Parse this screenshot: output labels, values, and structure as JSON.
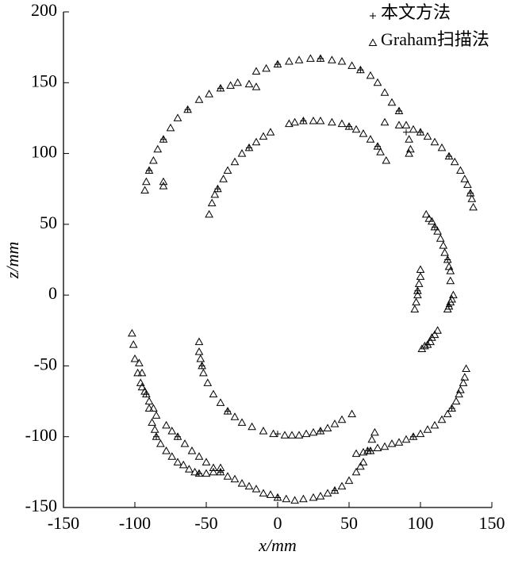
{
  "chart_data": {
    "type": "scatter",
    "xlabel": "x/mm",
    "ylabel": "z/mm",
    "xlim": [
      -150,
      150
    ],
    "ylim": [
      -150,
      200
    ],
    "xticks": [
      -150,
      -100,
      -50,
      0,
      50,
      100,
      150
    ],
    "yticks": [
      -150,
      -100,
      -50,
      0,
      50,
      100,
      150,
      200
    ],
    "grid": false,
    "legend": "upper right",
    "series": [
      {
        "name": "本文方法",
        "marker": "plus",
        "color": "#000000",
        "x": [
          -90,
          -80,
          -63,
          -40,
          0,
          30,
          58,
          85,
          90,
          100,
          120,
          135,
          -42,
          -20,
          18,
          50,
          70,
          110,
          119,
          98,
          120,
          105,
          -53,
          -35,
          0,
          30,
          -92,
          -70,
          -40,
          0,
          40,
          63,
          -85,
          -55,
          122,
          95,
          65
        ],
        "values": [
          88,
          110,
          131,
          146,
          163,
          167,
          159,
          130,
          115,
          115,
          98,
          72,
          75,
          104,
          123,
          119,
          105,
          48,
          25,
          3,
          -8,
          -35,
          -50,
          -82,
          -98,
          -96,
          -70,
          -100,
          -125,
          -143,
          -138,
          -110,
          -100,
          -126,
          -80,
          -100,
          -110
        ]
      },
      {
        "name": "Graham扫描法",
        "marker": "triangle",
        "color": "#000000",
        "x": [
          -93,
          -92,
          -90,
          -87,
          -84,
          -80,
          -75,
          -70,
          -63,
          -55,
          -48,
          -40,
          -33,
          -28,
          -20,
          -15,
          -80,
          -80,
          -15,
          -8,
          0,
          8,
          15,
          23,
          30,
          38,
          45,
          52,
          58,
          65,
          70,
          75,
          80,
          85,
          90,
          75,
          85,
          95,
          100,
          105,
          110,
          115,
          120,
          124,
          128,
          131,
          133,
          135,
          136,
          137,
          92,
          93,
          92,
          -48,
          -46,
          -44,
          -42,
          -38,
          -35,
          -30,
          -25,
          -20,
          -15,
          -10,
          -5,
          8,
          12,
          18,
          25,
          30,
          38,
          45,
          50,
          55,
          60,
          65,
          70,
          72,
          76,
          104,
          106,
          108,
          110,
          112,
          114,
          116,
          117,
          119,
          120,
          121,
          121,
          100,
          100,
          99,
          98,
          98,
          97,
          96,
          123,
          122,
          121,
          120,
          119,
          101,
          103,
          105,
          107,
          108,
          110,
          112,
          -55,
          -55,
          -54,
          -53,
          -52,
          -49,
          -45,
          -40,
          -35,
          -30,
          -25,
          -18,
          -10,
          -3,
          5,
          10,
          15,
          20,
          25,
          30,
          35,
          40,
          45,
          52,
          -102,
          -101,
          -100,
          -98,
          -96,
          -95,
          -92,
          -90,
          -87,
          -85,
          -78,
          -74,
          -70,
          -65,
          -60,
          -55,
          -50,
          -45,
          -40,
          -35,
          -30,
          -25,
          -20,
          -15,
          -10,
          -5,
          0,
          6,
          12,
          18,
          25,
          30,
          35,
          40,
          45,
          50,
          55,
          58,
          60,
          63,
          66,
          68,
          -97,
          -95,
          -93,
          -90,
          -88,
          -86,
          -85,
          -82,
          -78,
          -74,
          -70,
          -66,
          -62,
          -58,
          -55,
          -50,
          -45,
          -40,
          132,
          131,
          130,
          128,
          127,
          125,
          122,
          119,
          115,
          110,
          105,
          100,
          95,
          90,
          85,
          80,
          75,
          70,
          65,
          60,
          55
        ],
        "values": [
          74,
          80,
          88,
          95,
          103,
          110,
          118,
          125,
          131,
          138,
          142,
          146,
          148,
          150,
          149,
          147,
          77,
          80,
          158,
          160,
          163,
          165,
          166,
          167,
          167,
          166,
          165,
          162,
          159,
          155,
          150,
          143,
          136,
          130,
          120,
          122,
          120,
          117,
          115,
          112,
          108,
          104,
          98,
          94,
          88,
          82,
          78,
          72,
          68,
          62,
          110,
          103,
          100,
          57,
          65,
          71,
          75,
          82,
          88,
          94,
          100,
          104,
          108,
          112,
          115,
          121,
          122,
          123,
          123,
          123,
          122,
          121,
          119,
          117,
          114,
          110,
          105,
          101,
          95,
          57,
          54,
          52,
          48,
          45,
          40,
          35,
          30,
          25,
          20,
          17,
          10,
          18,
          13,
          8,
          3,
          0,
          -5,
          -10,
          0,
          -3,
          -5,
          -8,
          -10,
          -38,
          -36,
          -35,
          -33,
          -30,
          -28,
          -25,
          -33,
          -40,
          -45,
          -50,
          -55,
          -62,
          -70,
          -76,
          -82,
          -86,
          -90,
          -93,
          -96,
          -98,
          -99,
          -99,
          -99,
          -98,
          -97,
          -96,
          -94,
          -91,
          -88,
          -84,
          -27,
          -35,
          -45,
          -55,
          -62,
          -65,
          -70,
          -75,
          -80,
          -85,
          -92,
          -96,
          -100,
          -105,
          -110,
          -114,
          -118,
          -122,
          -125,
          -128,
          -130,
          -133,
          -135,
          -137,
          -140,
          -141,
          -143,
          -144,
          -145,
          -144,
          -143,
          -142,
          -140,
          -138,
          -135,
          -131,
          -125,
          -121,
          -118,
          -110,
          -102,
          -97,
          -48,
          -55,
          -68,
          -80,
          -90,
          -95,
          -100,
          -105,
          -110,
          -114,
          -118,
          -120,
          -123,
          -125,
          -126,
          -126,
          -125,
          -122,
          -52,
          -58,
          -62,
          -67,
          -70,
          -75,
          -80,
          -84,
          -88,
          -92,
          -95,
          -98,
          -100,
          -102,
          -104,
          -105,
          -107,
          -108,
          -110,
          -111,
          -112
        ]
      }
    ]
  }
}
